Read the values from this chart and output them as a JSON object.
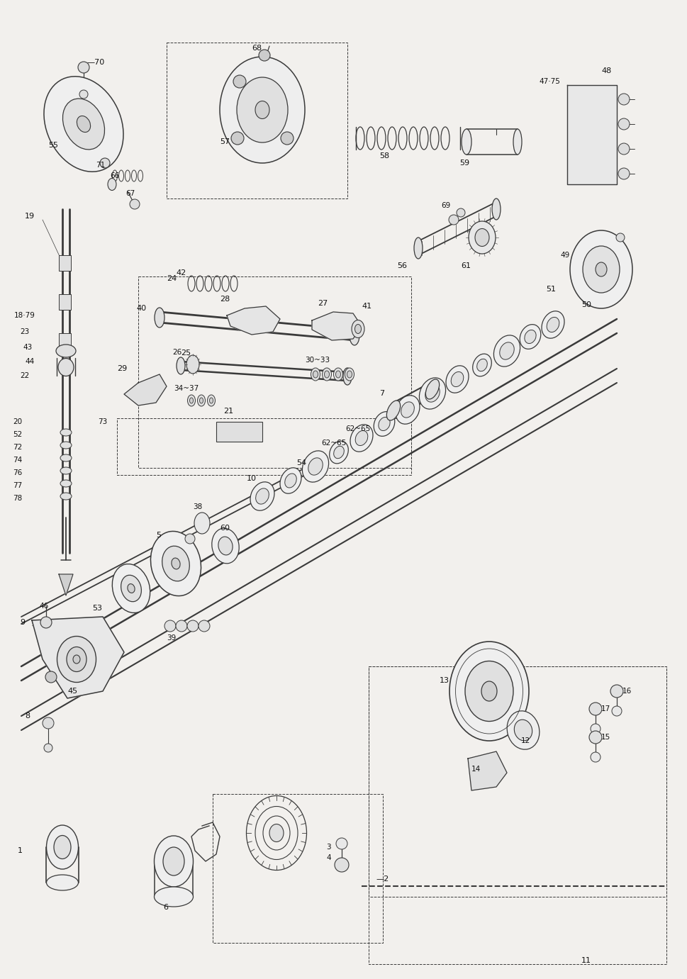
{
  "background_color": "#f2f0ed",
  "line_color": "#3a3a3a",
  "text_color": "#111111",
  "fig_width": 9.69,
  "fig_height": 13.81,
  "dpi": 100
}
